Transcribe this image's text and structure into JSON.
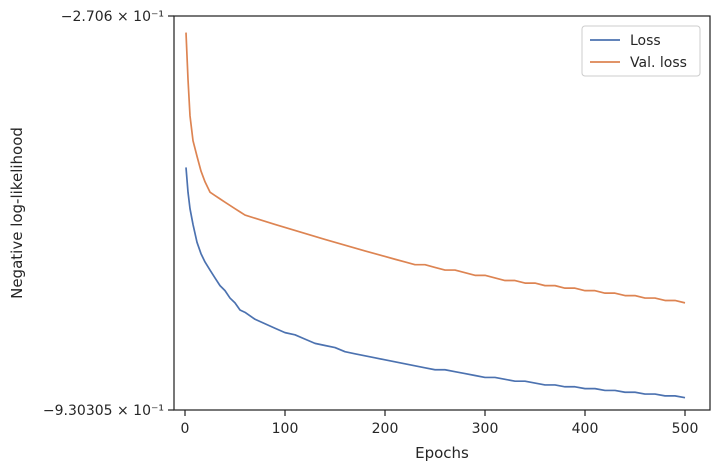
{
  "chart_data": {
    "type": "line",
    "title": "",
    "xlabel": "Epochs",
    "ylabel": "Negative log-likelihood",
    "xlim": [
      -11,
      525
    ],
    "x_ticks": [
      0,
      100,
      200,
      300,
      400,
      500
    ],
    "y_scale": "log",
    "y_axis_visible_labels": [
      "−2.706 × 10⁻¹",
      "−9.30305 × 10⁻¹"
    ],
    "legend_position": "top-right",
    "grid": false,
    "series": [
      {
        "name": "Loss",
        "color": "#4c72b0",
        "points": [
          [
            1,
            -0.435
          ],
          [
            3,
            -0.47
          ],
          [
            5,
            -0.495
          ],
          [
            8,
            -0.52
          ],
          [
            12,
            -0.55
          ],
          [
            16,
            -0.57
          ],
          [
            20,
            -0.585
          ],
          [
            25,
            -0.6
          ],
          [
            30,
            -0.615
          ],
          [
            35,
            -0.63
          ],
          [
            40,
            -0.64
          ],
          [
            45,
            -0.655
          ],
          [
            50,
            -0.665
          ],
          [
            55,
            -0.68
          ],
          [
            60,
            -0.685
          ],
          [
            70,
            -0.7
          ],
          [
            80,
            -0.71
          ],
          [
            90,
            -0.72
          ],
          [
            100,
            -0.73
          ],
          [
            110,
            -0.735
          ],
          [
            120,
            -0.745
          ],
          [
            130,
            -0.755
          ],
          [
            140,
            -0.76
          ],
          [
            150,
            -0.765
          ],
          [
            160,
            -0.775
          ],
          [
            170,
            -0.78
          ],
          [
            180,
            -0.785
          ],
          [
            190,
            -0.79
          ],
          [
            200,
            -0.795
          ],
          [
            210,
            -0.8
          ],
          [
            220,
            -0.805
          ],
          [
            230,
            -0.81
          ],
          [
            240,
            -0.815
          ],
          [
            250,
            -0.82
          ],
          [
            260,
            -0.82
          ],
          [
            270,
            -0.825
          ],
          [
            280,
            -0.83
          ],
          [
            290,
            -0.835
          ],
          [
            300,
            -0.84
          ],
          [
            310,
            -0.84
          ],
          [
            320,
            -0.845
          ],
          [
            330,
            -0.85
          ],
          [
            340,
            -0.85
          ],
          [
            350,
            -0.855
          ],
          [
            360,
            -0.86
          ],
          [
            370,
            -0.86
          ],
          [
            380,
            -0.865
          ],
          [
            390,
            -0.865
          ],
          [
            400,
            -0.87
          ],
          [
            410,
            -0.87
          ],
          [
            420,
            -0.875
          ],
          [
            430,
            -0.875
          ],
          [
            440,
            -0.88
          ],
          [
            450,
            -0.88
          ],
          [
            460,
            -0.885
          ],
          [
            470,
            -0.885
          ],
          [
            480,
            -0.89
          ],
          [
            490,
            -0.89
          ],
          [
            500,
            -0.895
          ]
        ]
      },
      {
        "name": "Val. loss",
        "color": "#dd8452",
        "points": [
          [
            1,
            -0.285
          ],
          [
            3,
            -0.33
          ],
          [
            5,
            -0.37
          ],
          [
            8,
            -0.4
          ],
          [
            12,
            -0.42
          ],
          [
            16,
            -0.44
          ],
          [
            20,
            -0.455
          ],
          [
            25,
            -0.47
          ],
          [
            30,
            -0.475
          ],
          [
            35,
            -0.48
          ],
          [
            40,
            -0.485
          ],
          [
            45,
            -0.49
          ],
          [
            50,
            -0.495
          ],
          [
            55,
            -0.5
          ],
          [
            60,
            -0.505
          ],
          [
            70,
            -0.51
          ],
          [
            80,
            -0.515
          ],
          [
            90,
            -0.52
          ],
          [
            100,
            -0.525
          ],
          [
            110,
            -0.53
          ],
          [
            120,
            -0.535
          ],
          [
            130,
            -0.54
          ],
          [
            140,
            -0.545
          ],
          [
            150,
            -0.55
          ],
          [
            160,
            -0.555
          ],
          [
            170,
            -0.56
          ],
          [
            180,
            -0.565
          ],
          [
            190,
            -0.57
          ],
          [
            200,
            -0.575
          ],
          [
            210,
            -0.58
          ],
          [
            220,
            -0.585
          ],
          [
            230,
            -0.59
          ],
          [
            240,
            -0.59
          ],
          [
            250,
            -0.595
          ],
          [
            260,
            -0.6
          ],
          [
            270,
            -0.6
          ],
          [
            280,
            -0.605
          ],
          [
            290,
            -0.61
          ],
          [
            300,
            -0.61
          ],
          [
            310,
            -0.615
          ],
          [
            320,
            -0.62
          ],
          [
            330,
            -0.62
          ],
          [
            340,
            -0.625
          ],
          [
            350,
            -0.625
          ],
          [
            360,
            -0.63
          ],
          [
            370,
            -0.63
          ],
          [
            380,
            -0.635
          ],
          [
            390,
            -0.635
          ],
          [
            400,
            -0.64
          ],
          [
            410,
            -0.64
          ],
          [
            420,
            -0.645
          ],
          [
            430,
            -0.645
          ],
          [
            440,
            -0.65
          ],
          [
            450,
            -0.65
          ],
          [
            460,
            -0.655
          ],
          [
            470,
            -0.655
          ],
          [
            480,
            -0.66
          ],
          [
            490,
            -0.66
          ],
          [
            500,
            -0.665
          ]
        ]
      }
    ]
  }
}
